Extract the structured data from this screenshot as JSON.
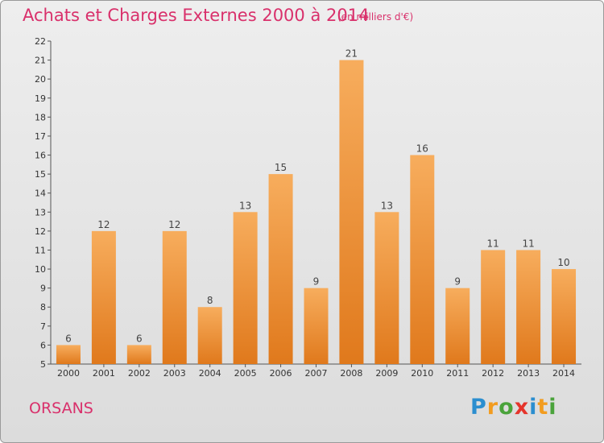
{
  "title": "Achats et Charges Externes 2000 à 2014",
  "subtitle": "(en milliers d'€)",
  "commune": "ORSANS",
  "logo": {
    "letters": [
      "P",
      "r",
      "o",
      "x",
      "i",
      "t",
      "i"
    ],
    "colors": [
      "#2b8ecf",
      "#f29c1f",
      "#4aa33b",
      "#e5342b",
      "#2b8ecf",
      "#f29c1f",
      "#4aa33b"
    ]
  },
  "colors": {
    "bar": "#f08c2a",
    "bar_light": "#f7ad5d",
    "title": "#d9306b"
  },
  "chart_data": {
    "type": "bar",
    "title": "Achats et Charges Externes 2000 à 2014",
    "subtitle": "(en milliers d'€)",
    "categories": [
      "2000",
      "2001",
      "2002",
      "2003",
      "2004",
      "2005",
      "2006",
      "2007",
      "2008",
      "2009",
      "2010",
      "2011",
      "2012",
      "2013",
      "2014"
    ],
    "values": [
      6,
      12,
      6,
      12,
      8,
      13,
      15,
      9,
      21,
      13,
      16,
      9,
      11,
      11,
      10
    ],
    "ylim": [
      5,
      22
    ],
    "yticks": [
      5,
      6,
      7,
      8,
      9,
      10,
      11,
      12,
      13,
      14,
      15,
      16,
      17,
      18,
      19,
      20,
      21,
      22
    ],
    "grid": false,
    "data_labels": true
  }
}
